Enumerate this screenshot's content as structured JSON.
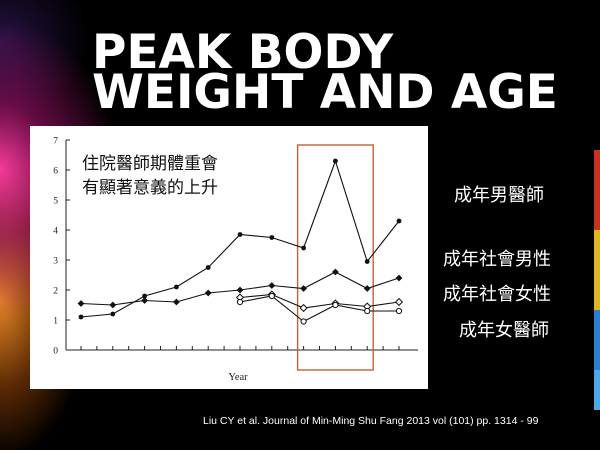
{
  "slide": {
    "title_line1": "PEAK BODY",
    "title_line2": "WEIGHT AND AGE",
    "citation": "Liu CY et al. Journal of Min-Ming Shu Fang 2013 vol (101) pp. 1314 - 99",
    "series_labels": [
      "成年男醫師",
      "成年社會男性",
      "成年社會女性",
      "成年女醫師"
    ],
    "colors": {
      "background": "#000000",
      "title": "#ffffff",
      "highlight_box": "#c0623a"
    }
  },
  "chart_data": {
    "type": "line",
    "xlabel": "Year",
    "ylabel": "",
    "ylim": [
      0,
      7
    ],
    "yticks": [
      "0",
      "1",
      "2",
      "3",
      "4",
      "5",
      "6",
      "7"
    ],
    "annotation_line1": "住院醫師期體重會",
    "annotation_line2": "有顯著意義的上升",
    "x": [
      1,
      2,
      3,
      4,
      5,
      6,
      7,
      8,
      9,
      10,
      11
    ],
    "series": [
      {
        "name": "成年男醫師",
        "marker": "dot",
        "values": [
          1.1,
          1.2,
          1.8,
          2.1,
          2.75,
          3.85,
          3.75,
          3.4,
          6.3,
          2.95,
          4.3
        ]
      },
      {
        "name": "成年社會男性",
        "marker": "diamond-filled",
        "values": [
          1.55,
          1.5,
          1.65,
          1.6,
          1.9,
          2.0,
          2.15,
          2.05,
          2.6,
          2.05,
          2.4
        ]
      },
      {
        "name": "成年社會女性",
        "marker": "diamond-open",
        "values": [
          null,
          null,
          null,
          null,
          null,
          1.75,
          1.85,
          1.4,
          1.55,
          1.45,
          1.6
        ]
      },
      {
        "name": "成年女醫師",
        "marker": "circle-open",
        "values": [
          null,
          null,
          null,
          null,
          null,
          1.6,
          1.8,
          0.95,
          1.5,
          1.3,
          1.3
        ]
      }
    ],
    "highlight_x_range": [
      8,
      10
    ]
  }
}
